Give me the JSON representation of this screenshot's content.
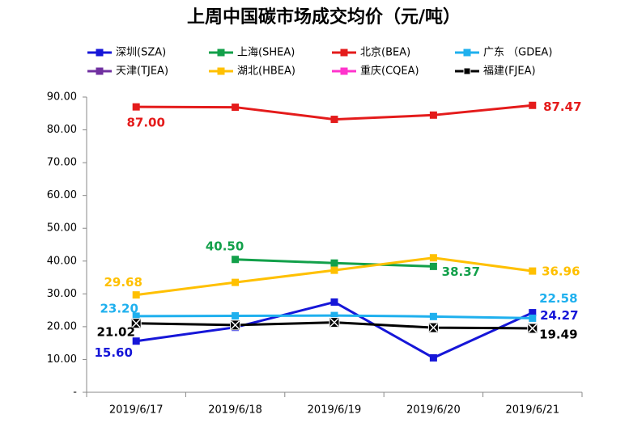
{
  "chart_data": {
    "type": "line",
    "title": "上周中国碳市场成交均价（元/吨）",
    "categories": [
      "2019/6/17",
      "2019/6/18",
      "2019/6/19",
      "2019/6/20",
      "2019/6/21"
    ],
    "ylim": [
      0,
      90
    ],
    "yticks": [
      {
        "value": 0,
        "label": "-"
      },
      {
        "value": 10,
        "label": "10.00"
      },
      {
        "value": 20,
        "label": "20.00"
      },
      {
        "value": 30,
        "label": "30.00"
      },
      {
        "value": 40,
        "label": "40.00"
      },
      {
        "value": 50,
        "label": "50.00"
      },
      {
        "value": 60,
        "label": "60.00"
      },
      {
        "value": 70,
        "label": "70.00"
      },
      {
        "value": 80,
        "label": "80.00"
      },
      {
        "value": 90,
        "label": "90.00"
      }
    ],
    "series": [
      {
        "name": "深圳(SZA)",
        "color": "#1616d8",
        "marker": "square",
        "values": [
          15.6,
          19.8,
          27.5,
          10.5,
          24.27
        ],
        "value_labels": [
          "15.60",
          null,
          null,
          null,
          "24.27"
        ]
      },
      {
        "name": "上海(SHEA)",
        "color": "#12a04a",
        "marker": "square",
        "values": [
          null,
          40.5,
          39.4,
          38.37,
          null
        ],
        "value_labels": [
          null,
          "40.50",
          null,
          "38.37",
          null
        ]
      },
      {
        "name": "北京(BEA)",
        "color": "#e41b1b",
        "marker": "square",
        "values": [
          87,
          86.9,
          83.2,
          84.5,
          87.47
        ],
        "value_labels": [
          "87.00",
          null,
          null,
          null,
          "87.47"
        ]
      },
      {
        "name": "广东 （GDEA)",
        "color": "#1fb0ee",
        "marker": "square",
        "values": [
          23.2,
          23.3,
          23.4,
          23.1,
          22.58
        ],
        "value_labels": [
          "23.20",
          null,
          null,
          null,
          "22.58"
        ]
      },
      {
        "name": "天津(TJEA)",
        "color": "#7030a0",
        "marker": "square",
        "values": [
          null,
          null,
          null,
          null,
          null
        ]
      },
      {
        "name": "湖北(HBEA)",
        "color": "#ffc000",
        "marker": "square",
        "values": [
          29.68,
          33.5,
          37.2,
          41.0,
          36.96
        ],
        "value_labels": [
          "29.68",
          null,
          null,
          null,
          "36.96"
        ]
      },
      {
        "name": "重庆(CQEA)",
        "color": "#ff33cc",
        "marker": "square",
        "values": [
          null,
          null,
          null,
          null,
          null
        ]
      },
      {
        "name": "福建(FJEA)",
        "color": "#000000",
        "marker": "x-square",
        "values": [
          21.02,
          20.5,
          21.3,
          19.7,
          19.49
        ],
        "value_labels": [
          "21.02",
          null,
          null,
          null,
          "19.49"
        ]
      }
    ]
  }
}
